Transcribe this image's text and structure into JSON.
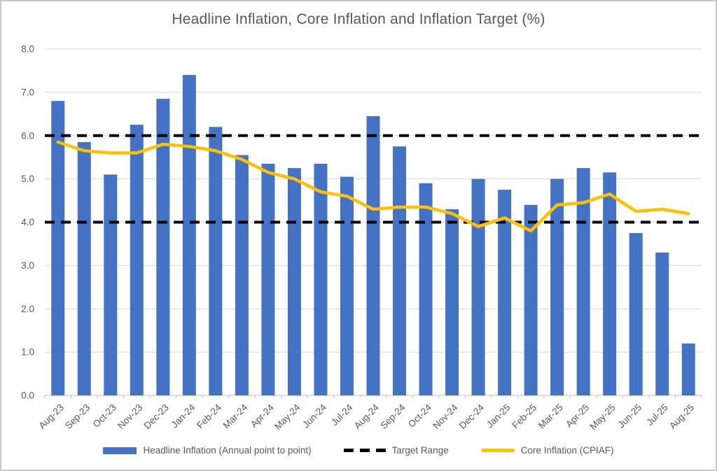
{
  "title": "Headline Inflation, Core Inflation and Inflation Target (%)",
  "colors": {
    "bar_blue": "#4472C4",
    "core_yellow": "#FFC000",
    "target_black": "#000000",
    "gridline": "#D9D9D9",
    "axis_tick": "#BFBFBF",
    "text_gray": "#595959",
    "frame_border": "#C9C9C9"
  },
  "chart_data": {
    "type": "bar",
    "title": "Headline Inflation, Core Inflation and Inflation Target (%)",
    "categories": [
      "Aug-23",
      "Sep-23",
      "Oct-23",
      "Nov-23",
      "Dec-23",
      "Jan-24",
      "Feb-24",
      "Mar-24",
      "Apr-24",
      "May-24",
      "Jun-24",
      "Jul-24",
      "Aug-24",
      "Sep-24",
      "Oct-24",
      "Nov-24",
      "Dec-24",
      "Jan-25",
      "Feb-25",
      "Mar-25",
      "Apr-25",
      "May-25",
      "Jun-25",
      "Jul-25",
      "Aug-25"
    ],
    "series": [
      {
        "name": "Headline Inflation (Annual point to point)",
        "type": "bar",
        "color": "#4472C4",
        "values": [
          6.8,
          5.85,
          5.1,
          6.25,
          6.85,
          7.4,
          6.2,
          5.55,
          5.35,
          5.25,
          5.35,
          5.05,
          6.45,
          5.75,
          4.9,
          4.3,
          5.0,
          4.75,
          4.4,
          5.0,
          5.25,
          5.15,
          3.75,
          3.3,
          1.2
        ]
      },
      {
        "name": "Target Range",
        "type": "dashed-hlines",
        "color": "#000000",
        "values": [
          4.0,
          6.0
        ]
      },
      {
        "name": "Core Inflation (CPIAF)",
        "type": "line",
        "color": "#FFC000",
        "values": [
          5.85,
          5.65,
          5.6,
          5.6,
          5.8,
          5.75,
          5.65,
          5.45,
          5.15,
          5.0,
          4.7,
          4.6,
          4.3,
          4.35,
          4.35,
          4.2,
          3.9,
          4.1,
          3.8,
          4.4,
          4.45,
          4.65,
          4.25,
          4.3,
          4.2
        ]
      }
    ],
    "xlabel": "",
    "ylabel": "",
    "ylim": [
      0,
      8
    ],
    "ytick_step": 1,
    "ytick_labels": [
      "0.0",
      "1.0",
      "2.0",
      "3.0",
      "4.0",
      "5.0",
      "6.0",
      "7.0",
      "8.0"
    ],
    "grid": true,
    "legend_position": "bottom",
    "x_label_rotation_deg": 45
  }
}
